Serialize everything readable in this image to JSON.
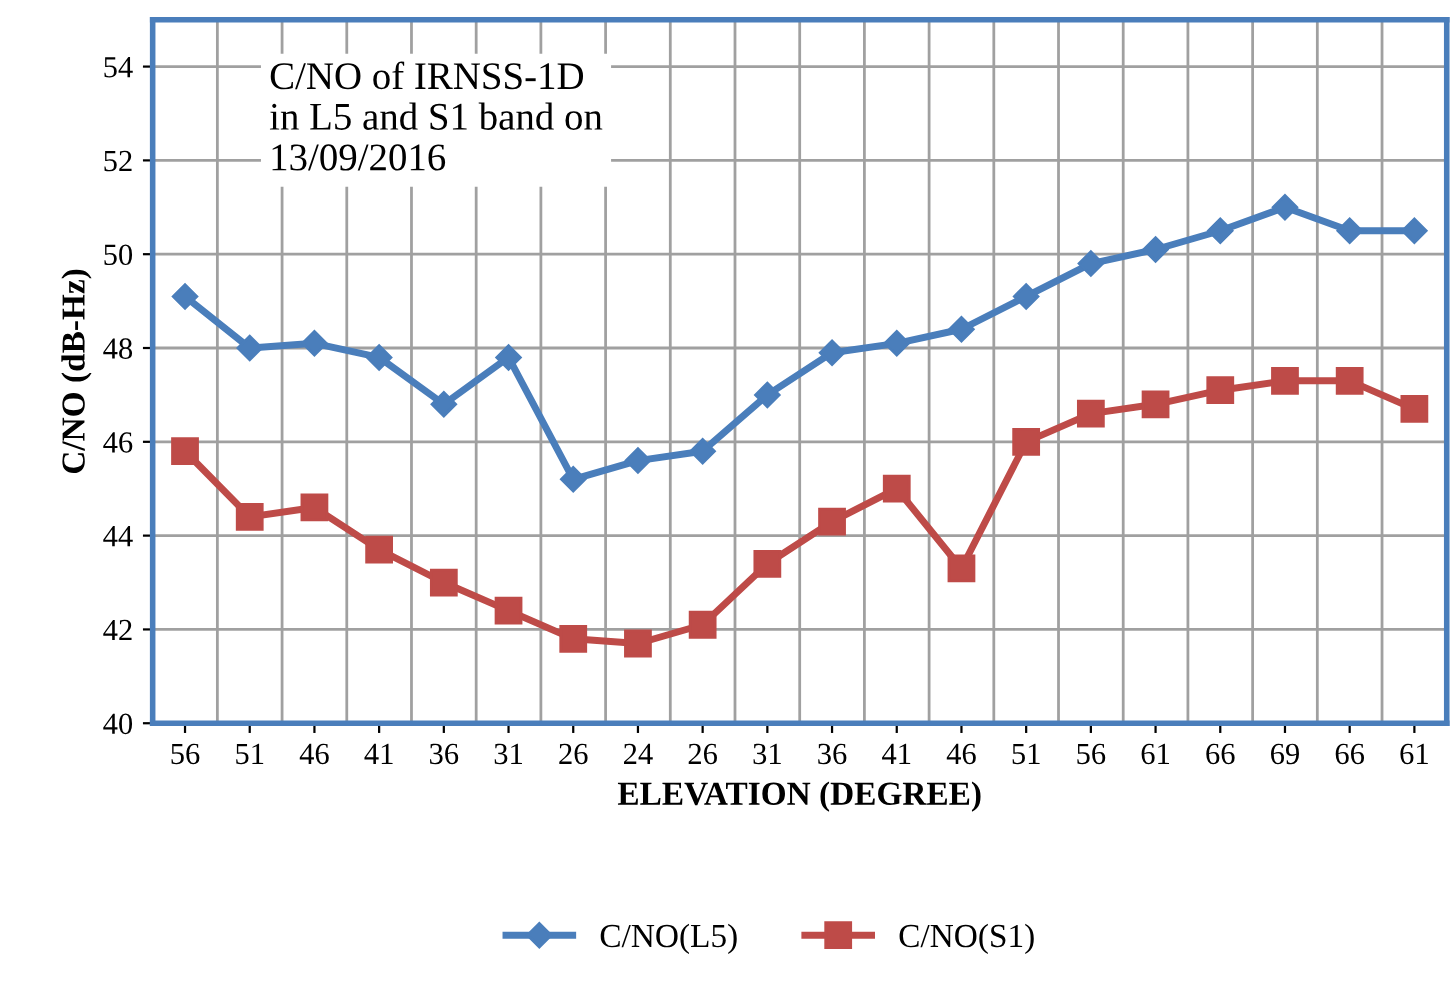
{
  "chart_data": {
    "type": "line",
    "xlabel": "ELEVATION (DEGREE)",
    "ylabel": "C/NO (dB-Hz)",
    "annotations": [
      "C/NO of IRNSS-1D\nin L5 and S1 band on\n13/09/2016"
    ],
    "categories": [
      "56",
      "51",
      "46",
      "41",
      "36",
      "31",
      "26",
      "24",
      "26",
      "31",
      "36",
      "41",
      "46",
      "51",
      "56",
      "61",
      "66",
      "69",
      "66",
      "61"
    ],
    "series": [
      {
        "name": "C/NO(L5)",
        "color": "#4a7ebb",
        "marker": "diamond",
        "values": [
          49.1,
          48.0,
          48.1,
          47.8,
          46.8,
          47.8,
          45.2,
          45.6,
          45.8,
          47.0,
          47.9,
          48.1,
          48.4,
          49.1,
          49.8,
          50.1,
          50.5,
          51.0,
          50.5,
          50.5
        ]
      },
      {
        "name": "C/NO(S1)",
        "color": "#be4b48",
        "marker": "square",
        "values": [
          45.8,
          44.4,
          44.6,
          43.7,
          43.0,
          42.4,
          41.8,
          41.7,
          42.1,
          43.4,
          44.3,
          45.0,
          43.3,
          46.0,
          46.6,
          46.8,
          47.1,
          47.3,
          47.3,
          46.7
        ]
      }
    ],
    "ylim": [
      40,
      55
    ],
    "yticks": [
      40,
      42,
      44,
      46,
      48,
      50,
      52,
      54
    ],
    "grid": true,
    "legend": "bottom",
    "line_style": "solid"
  }
}
